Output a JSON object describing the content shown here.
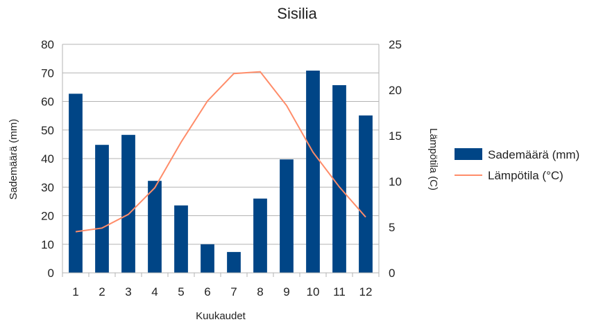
{
  "chart_data": {
    "type": "bar+line",
    "title": "Sisilia",
    "xlabel": "Kuukaudet",
    "ylabel": "Sademäärä (mm)",
    "y2label": "Lämpötila (C)",
    "categories": [
      "1",
      "2",
      "3",
      "4",
      "5",
      "6",
      "7",
      "8",
      "9",
      "10",
      "11",
      "12"
    ],
    "ylim": [
      0,
      80
    ],
    "yticks": [
      0,
      10,
      20,
      30,
      40,
      50,
      60,
      70,
      80
    ],
    "y2lim": [
      0,
      25
    ],
    "y2ticks": [
      0,
      5,
      10,
      15,
      20,
      25
    ],
    "grid": true,
    "legend_position": "right",
    "series": [
      {
        "name": "Sademäärä (mm)",
        "type": "bar",
        "axis": "left",
        "color": "#004586",
        "values": [
          62.7,
          44.8,
          48.3,
          32.2,
          23.6,
          10,
          7.3,
          26,
          39.7,
          70.8,
          65.7,
          55.1
        ]
      },
      {
        "name": "Lämpötila (°C)",
        "type": "line",
        "axis": "right",
        "color": "#ff8c69",
        "values": [
          4.5,
          4.9,
          6.4,
          9.3,
          14.3,
          18.8,
          21.8,
          22,
          18.3,
          13.2,
          9.4,
          6.1
        ]
      }
    ]
  }
}
